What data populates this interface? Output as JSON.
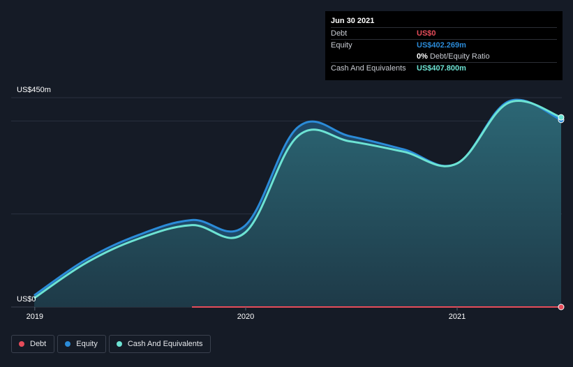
{
  "chart_data": {
    "type": "area",
    "y_tick_labels": {
      "top": "US$450m",
      "bottom": "US$0"
    },
    "ylim": [
      0,
      450
    ],
    "x_tick_labels": [
      "2019",
      "2020",
      "2021"
    ],
    "x_ticks": [
      "2019-01-01",
      "2020-01-01",
      "2021-01-01"
    ],
    "series": [
      {
        "name": "Debt",
        "color": "#e64c5a",
        "points": [
          [
            "2019-09-30",
            0
          ],
          [
            "2019-12-31",
            0
          ],
          [
            "2020-03-31",
            0
          ],
          [
            "2020-06-30",
            0
          ],
          [
            "2020-09-30",
            0
          ],
          [
            "2020-12-31",
            0
          ],
          [
            "2021-03-31",
            0
          ],
          [
            "2021-06-30",
            0
          ]
        ]
      },
      {
        "name": "Equity",
        "color": "#2b8bd8",
        "points": [
          [
            "2018-12-31",
            25
          ],
          [
            "2019-03-31",
            102
          ],
          [
            "2019-06-30",
            155
          ],
          [
            "2019-09-30",
            187
          ],
          [
            "2019-12-31",
            175
          ],
          [
            "2020-03-31",
            386
          ],
          [
            "2020-06-30",
            367
          ],
          [
            "2020-09-30",
            339
          ],
          [
            "2020-12-31",
            308
          ],
          [
            "2021-03-31",
            442
          ],
          [
            "2021-06-30",
            402.269
          ]
        ]
      },
      {
        "name": "Cash And Equivalents",
        "color": "#6de3d3",
        "points": [
          [
            "2018-12-31",
            19
          ],
          [
            "2019-03-31",
            95
          ],
          [
            "2019-06-30",
            147
          ],
          [
            "2019-09-30",
            176
          ],
          [
            "2019-12-31",
            160
          ],
          [
            "2020-03-31",
            367
          ],
          [
            "2020-06-30",
            356
          ],
          [
            "2020-09-30",
            334
          ],
          [
            "2020-12-31",
            308
          ],
          [
            "2021-03-31",
            439
          ],
          [
            "2021-06-30",
            407.8
          ]
        ]
      }
    ]
  },
  "tooltip": {
    "date": "Jun 30 2021",
    "rows": [
      {
        "label": "Debt",
        "value": "US$0",
        "color": "#e64c5a"
      },
      {
        "label": "Equity",
        "value": "US$402.269m",
        "color": "#2b8bd8"
      },
      {
        "label": "",
        "value": "0%",
        "suffix": "Debt/Equity Ratio",
        "color": "#ffffff"
      },
      {
        "label": "Cash And Equivalents",
        "value": "US$407.800m",
        "color": "#6de3d3"
      }
    ]
  },
  "legend": [
    {
      "label": "Debt",
      "color": "#e64c5a"
    },
    {
      "label": "Equity",
      "color": "#2b8bd8"
    },
    {
      "label": "Cash And Equivalents",
      "color": "#6de3d3"
    }
  ]
}
